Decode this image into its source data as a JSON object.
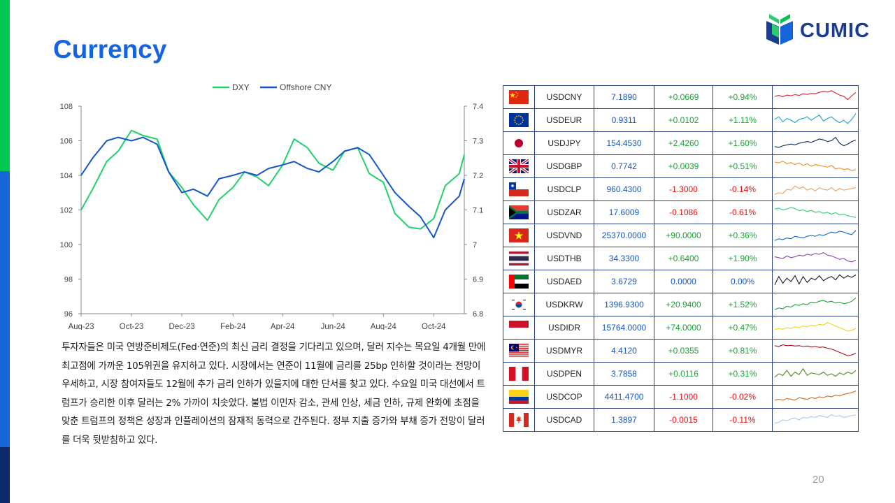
{
  "title": "Currency",
  "logo": {
    "text": "CUMIC"
  },
  "page_number": "20",
  "body_text": "투자자들은 미국 연방준비제도(Fed·연준)의 최신 금리 결정을 기다리고 있으며, 달러 지수는 목요일 4개월 만에 최고점에 가까운 105위권을 유지하고 있다. 시장에서는 연준이 11월에 금리를 25bp 인하할 것이라는 전망이 우세하고, 시장 참여자들도 12월에 추가 금리 인하가 있을지에 대한 단서를 찾고 있다. 수요일 미국 대선에서 트럼프가 승리한 이후 달러는 2% 가까이 치솟았다. 불법 이민자 감소, 관세 인상, 세금 인하, 규제 완화에 초점을 맞춘 트럼프의 정책은 성장과 인플레이션의 잠재적 동력으로 간주된다. 정부 지출 증가와 부채 증가 전망이 달러를 더욱 뒷받침하고 있다.",
  "colors": {
    "accent": "#1565e0",
    "dxy": "#1fd16a",
    "cny": "#1456c8",
    "positive": "#1aa332",
    "negative": "#e01010"
  },
  "chart_data": {
    "type": "line",
    "series": [
      {
        "name": "DXY",
        "axis": "left",
        "x": [
          "2023-08-01",
          "2023-08-15",
          "2023-09-01",
          "2023-09-15",
          "2023-10-01",
          "2023-10-15",
          "2023-11-01",
          "2023-11-15",
          "2023-12-01",
          "2023-12-15",
          "2024-01-01",
          "2024-01-15",
          "2024-02-01",
          "2024-02-15",
          "2024-03-01",
          "2024-03-15",
          "2024-04-01",
          "2024-04-15",
          "2024-05-01",
          "2024-05-15",
          "2024-06-01",
          "2024-06-15",
          "2024-07-01",
          "2024-07-15",
          "2024-08-01",
          "2024-08-15",
          "2024-09-01",
          "2024-09-15",
          "2024-10-01",
          "2024-10-15",
          "2024-11-01",
          "2024-11-07"
        ],
        "values": [
          102.0,
          103.2,
          104.8,
          105.4,
          106.6,
          106.3,
          106.1,
          104.2,
          103.3,
          102.3,
          101.4,
          102.6,
          103.3,
          104.2,
          103.9,
          103.4,
          104.6,
          106.1,
          105.6,
          104.7,
          104.3,
          105.4,
          105.6,
          104.1,
          103.6,
          101.8,
          101.0,
          100.9,
          101.5,
          103.4,
          104.1,
          105.2
        ]
      },
      {
        "name": "Offshore CNY",
        "axis": "right",
        "x": [
          "2023-08-01",
          "2023-08-15",
          "2023-09-01",
          "2023-09-15",
          "2023-10-01",
          "2023-10-15",
          "2023-11-01",
          "2023-11-15",
          "2023-12-01",
          "2023-12-15",
          "2024-01-01",
          "2024-01-15",
          "2024-02-01",
          "2024-02-15",
          "2024-03-01",
          "2024-03-15",
          "2024-04-01",
          "2024-04-15",
          "2024-05-01",
          "2024-05-15",
          "2024-06-01",
          "2024-06-15",
          "2024-07-01",
          "2024-07-15",
          "2024-08-01",
          "2024-08-15",
          "2024-09-01",
          "2024-09-15",
          "2024-10-01",
          "2024-10-15",
          "2024-11-01",
          "2024-11-07"
        ],
        "values": [
          7.2,
          7.25,
          7.3,
          7.31,
          7.3,
          7.31,
          7.29,
          7.21,
          7.15,
          7.16,
          7.14,
          7.19,
          7.2,
          7.21,
          7.2,
          7.22,
          7.23,
          7.24,
          7.22,
          7.21,
          7.24,
          7.27,
          7.28,
          7.26,
          7.2,
          7.15,
          7.11,
          7.08,
          7.02,
          7.1,
          7.14,
          7.19
        ]
      }
    ],
    "x_ticks": [
      "Aug-23",
      "Oct-23",
      "Dec-23",
      "Feb-24",
      "Apr-24",
      "Jun-24",
      "Aug-24",
      "Oct-24"
    ],
    "x_tick_dates": [
      "2023-08-01",
      "2023-10-01",
      "2023-12-01",
      "2024-02-01",
      "2024-04-01",
      "2024-06-01",
      "2024-08-01",
      "2024-10-01"
    ],
    "xlim": [
      "2023-08-01",
      "2024-11-07"
    ],
    "y_left": {
      "ticks": [
        "96",
        "98",
        "100",
        "102",
        "104",
        "106",
        "108"
      ],
      "ylim": [
        96,
        108
      ]
    },
    "y_right": {
      "ticks": [
        "6.8",
        "6.9",
        "7",
        "7.1",
        "7.2",
        "7.3",
        "7.4"
      ],
      "ylim": [
        6.8,
        7.4
      ]
    },
    "legend_position": "top-center",
    "grid": false
  },
  "fx_table": [
    {
      "code": "USDCNY",
      "rate": "7.1890",
      "change": "+0.0669",
      "pct": "+0.94%",
      "sign": "pos",
      "flag": "cn-flag-icon",
      "spark_color": "#d62728",
      "spark": [
        0.55,
        0.6,
        0.52,
        0.62,
        0.58,
        0.65,
        0.6,
        0.7,
        0.66,
        0.72,
        0.7,
        0.78,
        0.85,
        0.8,
        0.88,
        0.75,
        0.62,
        0.55,
        0.35,
        0.58,
        0.78
      ]
    },
    {
      "code": "USDEUR",
      "rate": "0.9311",
      "change": "+0.0102",
      "pct": "+1.11%",
      "sign": "pos",
      "flag": "eu-flag-icon",
      "spark_color": "#1f9fd6",
      "spark": [
        0.55,
        0.7,
        0.4,
        0.6,
        0.5,
        0.35,
        0.55,
        0.6,
        0.7,
        0.5,
        0.65,
        0.8,
        0.45,
        0.6,
        0.7,
        0.5,
        0.35,
        0.5,
        0.3,
        0.55,
        0.9
      ]
    },
    {
      "code": "USDJPY",
      "rate": "154.4530",
      "change": "+2.4260",
      "pct": "+1.60%",
      "sign": "pos",
      "flag": "jp-flag-icon",
      "spark_color": "#0d2a5e",
      "spark": [
        0.3,
        0.25,
        0.35,
        0.4,
        0.45,
        0.4,
        0.5,
        0.55,
        0.6,
        0.55,
        0.65,
        0.75,
        0.7,
        0.6,
        0.65,
        0.85,
        0.5,
        0.35,
        0.45,
        0.6,
        0.7
      ]
    },
    {
      "code": "USDGBP",
      "rate": "0.7742",
      "change": "+0.0039",
      "pct": "+0.51%",
      "sign": "pos",
      "flag": "gb-flag-icon",
      "spark_color": "#f08a24",
      "spark": [
        0.75,
        0.7,
        0.8,
        0.65,
        0.72,
        0.6,
        0.7,
        0.55,
        0.65,
        0.5,
        0.6,
        0.55,
        0.5,
        0.45,
        0.55,
        0.35,
        0.4,
        0.3,
        0.35,
        0.25,
        0.3
      ]
    },
    {
      "code": "USDCLP",
      "rate": "960.4300",
      "change": "-1.3000",
      "pct": "-0.14%",
      "sign": "neg",
      "flag": "cl-flag-icon",
      "spark_color": "#e8a165",
      "spark": [
        0.2,
        0.3,
        0.25,
        0.5,
        0.45,
        0.7,
        0.55,
        0.65,
        0.45,
        0.55,
        0.4,
        0.6,
        0.5,
        0.45,
        0.6,
        0.4,
        0.55,
        0.45,
        0.5,
        0.55,
        0.6
      ]
    },
    {
      "code": "USDZAR",
      "rate": "17.6009",
      "change": "-0.1086",
      "pct": "-0.61%",
      "sign": "neg",
      "flag": "za-flag-icon",
      "spark_color": "#2ecc71",
      "spark": [
        0.7,
        0.75,
        0.65,
        0.7,
        0.8,
        0.72,
        0.6,
        0.65,
        0.55,
        0.62,
        0.5,
        0.55,
        0.45,
        0.5,
        0.4,
        0.48,
        0.35,
        0.4,
        0.3,
        0.25,
        0.2
      ]
    },
    {
      "code": "USDVND",
      "rate": "25370.0000",
      "change": "+90.0000",
      "pct": "+0.36%",
      "sign": "pos",
      "flag": "vn-flag-icon",
      "spark_color": "#1565d8",
      "spark": [
        0.2,
        0.3,
        0.25,
        0.35,
        0.3,
        0.45,
        0.4,
        0.35,
        0.45,
        0.5,
        0.45,
        0.55,
        0.5,
        0.6,
        0.7,
        0.65,
        0.75,
        0.7,
        0.6,
        0.55,
        0.8
      ]
    },
    {
      "code": "USDTHB",
      "rate": "34.3300",
      "change": "+0.6400",
      "pct": "+1.90%",
      "sign": "pos",
      "flag": "th-flag-icon",
      "spark_color": "#8e44ad",
      "spark": [
        0.6,
        0.55,
        0.5,
        0.65,
        0.55,
        0.6,
        0.7,
        0.65,
        0.75,
        0.7,
        0.8,
        0.75,
        0.85,
        0.7,
        0.65,
        0.55,
        0.45,
        0.5,
        0.35,
        0.3,
        0.4
      ]
    },
    {
      "code": "USDAED",
      "rate": "3.6729",
      "change": "0.0000",
      "pct": "0.00%",
      "sign": "zero",
      "flag": "ae-flag-icon",
      "spark_color": "#1a1a2e",
      "spark": [
        0.3,
        0.8,
        0.4,
        0.7,
        0.5,
        0.85,
        0.35,
        0.8,
        0.45,
        0.7,
        0.6,
        0.85,
        0.55,
        0.7,
        0.8,
        0.6,
        0.9,
        0.7,
        0.85,
        0.75,
        0.9
      ]
    },
    {
      "code": "USDKRW",
      "rate": "1396.9300",
      "change": "+20.9400",
      "pct": "+1.52%",
      "sign": "pos",
      "flag": "kr-flag-icon",
      "spark_color": "#1aa332",
      "spark": [
        0.2,
        0.3,
        0.25,
        0.4,
        0.35,
        0.5,
        0.45,
        0.55,
        0.5,
        0.65,
        0.6,
        0.7,
        0.75,
        0.65,
        0.7,
        0.6,
        0.65,
        0.55,
        0.6,
        0.7,
        0.9
      ]
    },
    {
      "code": "USDIDR",
      "rate": "15764.0000",
      "change": "+74.0000",
      "pct": "+0.47%",
      "sign": "pos",
      "flag": "id-flag-icon",
      "spark_color": "#f2d21a",
      "spark": [
        0.4,
        0.45,
        0.4,
        0.5,
        0.45,
        0.55,
        0.5,
        0.6,
        0.55,
        0.65,
        0.6,
        0.7,
        0.65,
        0.8,
        0.7,
        0.6,
        0.5,
        0.4,
        0.3,
        0.35,
        0.45
      ]
    },
    {
      "code": "USDMYR",
      "rate": "4.4120",
      "change": "+0.0355",
      "pct": "+0.81%",
      "sign": "pos",
      "flag": "my-flag-icon",
      "spark_color": "#a01020",
      "spark": [
        0.8,
        0.75,
        0.85,
        0.8,
        0.82,
        0.78,
        0.8,
        0.75,
        0.78,
        0.72,
        0.75,
        0.7,
        0.72,
        0.65,
        0.6,
        0.5,
        0.4,
        0.3,
        0.2,
        0.25,
        0.35
      ]
    },
    {
      "code": "USDPEN",
      "rate": "3.7858",
      "change": "+0.0116",
      "pct": "+0.31%",
      "sign": "pos",
      "flag": "pe-flag-icon",
      "spark_color": "#4a8c1c",
      "spark": [
        0.3,
        0.5,
        0.4,
        0.7,
        0.35,
        0.6,
        0.45,
        0.8,
        0.4,
        0.55,
        0.5,
        0.45,
        0.6,
        0.4,
        0.5,
        0.35,
        0.55,
        0.45,
        0.6,
        0.5,
        0.7
      ]
    },
    {
      "code": "USDCOP",
      "rate": "4411.4700",
      "change": "-1.1000",
      "pct": "-0.02%",
      "sign": "neg",
      "flag": "co-flag-icon",
      "spark_color": "#d2691e",
      "spark": [
        0.3,
        0.35,
        0.3,
        0.4,
        0.35,
        0.3,
        0.45,
        0.4,
        0.35,
        0.45,
        0.4,
        0.5,
        0.45,
        0.55,
        0.5,
        0.6,
        0.55,
        0.65,
        0.7,
        0.75,
        0.85
      ]
    },
    {
      "code": "USDCAD",
      "rate": "1.3897",
      "change": "-0.0015",
      "pct": "-0.11%",
      "sign": "neg",
      "flag": "ca-flag-icon",
      "spark_color": "#a6c8ea",
      "spark": [
        0.3,
        0.35,
        0.5,
        0.45,
        0.55,
        0.6,
        0.5,
        0.65,
        0.6,
        0.7,
        0.65,
        0.75,
        0.7,
        0.65,
        0.8,
        0.7,
        0.75,
        0.65,
        0.7,
        0.75,
        0.8
      ]
    }
  ]
}
